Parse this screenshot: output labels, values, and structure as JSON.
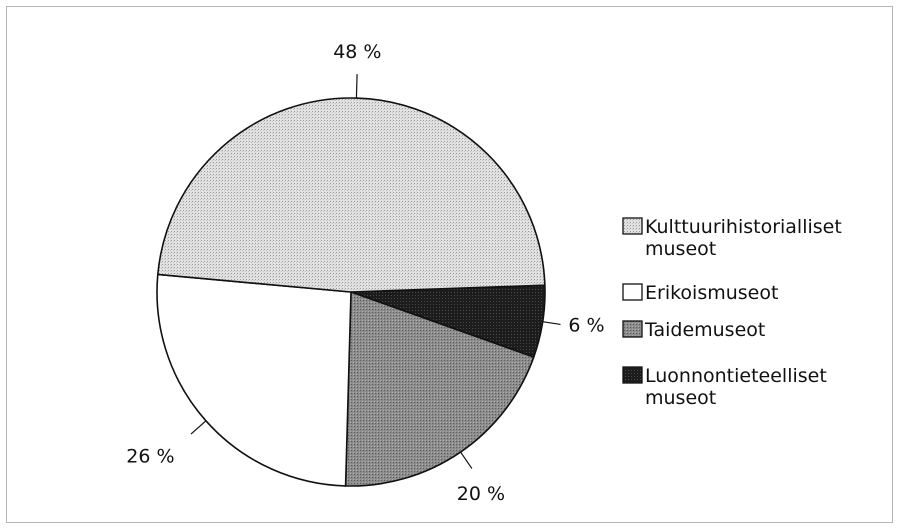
{
  "chart_data": {
    "type": "pie",
    "categories": [
      "Kulttuurihistorialliset museot",
      "Erikoismuseot",
      "Taidemuseot",
      "Luonnontieteelliset museot"
    ],
    "values": [
      48,
      26,
      20,
      6
    ],
    "value_labels": [
      "48 %",
      "26 %",
      "20 %",
      "6 %"
    ],
    "legend": {
      "placement": "right",
      "entries": [
        {
          "lines": [
            "Kulttuurihistorialliset",
            "museot"
          ],
          "color": "#dcdcdc"
        },
        {
          "lines": [
            "Erikoismuseot"
          ],
          "color": "#ffffff"
        },
        {
          "lines": [
            "Taidemuseot"
          ],
          "color": "#8a8a8a"
        },
        {
          "lines": [
            "Luonnontieteelliset",
            "museot"
          ],
          "color": "#1a1a1a"
        }
      ]
    },
    "colors": [
      "#dcdcdc",
      "#ffffff",
      "#8a8a8a",
      "#1a1a1a"
    ],
    "title": "",
    "grid": false
  }
}
